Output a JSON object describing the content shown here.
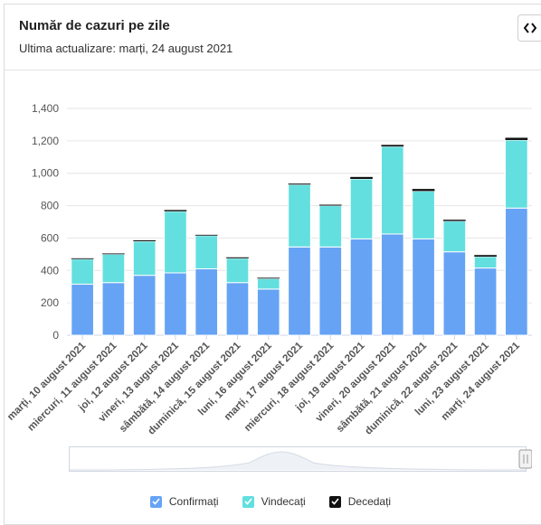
{
  "card": {
    "title": "Număr de cazuri pe zile",
    "subtitle": "Ultima actualizare: marți, 24 august 2021",
    "embed_icon": "code-icon"
  },
  "chart_data": {
    "type": "bar",
    "stacked": true,
    "categories": [
      "marți, 10 august 2021",
      "miercuri, 11 august 2021",
      "joi, 12 august 2021",
      "vineri, 13 august 2021",
      "sâmbătă, 14 august 2021",
      "duminică, 15 august 2021",
      "luni, 16 august 2021",
      "marți, 17 august 2021",
      "miercuri, 18 august 2021",
      "joi, 19 august 2021",
      "vineri, 20 august 2021",
      "sâmbătă, 21 august 2021",
      "duminică, 22 august 2021",
      "luni, 23 august 2021",
      "marți, 24 august 2021"
    ],
    "series": [
      {
        "name": "Confirmați",
        "color": "#66a3f5",
        "values": [
          315,
          325,
          370,
          385,
          410,
          325,
          285,
          545,
          545,
          595,
          625,
          595,
          515,
          415,
          785
        ]
      },
      {
        "name": "Vindecați",
        "color": "#63dfdf",
        "values": [
          155,
          175,
          210,
          380,
          205,
          150,
          65,
          385,
          255,
          370,
          540,
          295,
          190,
          70,
          420
        ]
      },
      {
        "name": "Decedați",
        "color": "#111111",
        "values": [
          5,
          5,
          6,
          8,
          5,
          6,
          5,
          6,
          6,
          12,
          10,
          13,
          8,
          10,
          14
        ]
      }
    ],
    "ylim": [
      0,
      1400
    ],
    "yticks": [
      "0",
      "200",
      "400",
      "600",
      "800",
      "1,000",
      "1,200",
      "1,400"
    ],
    "grid": true,
    "legend_position": "bottom"
  },
  "navigator": {
    "has_handles": true
  }
}
